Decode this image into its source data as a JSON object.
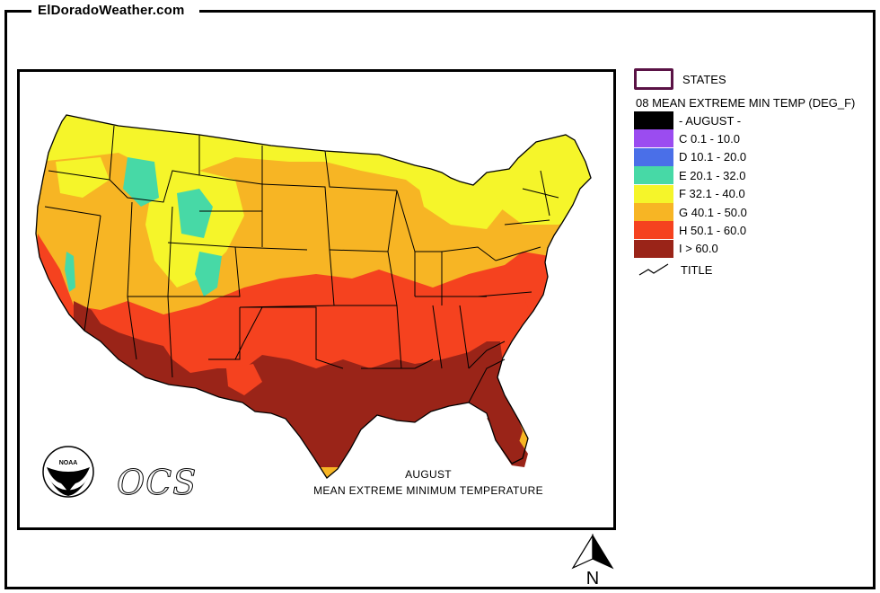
{
  "site_title": "ElDoradoWeather.com",
  "map": {
    "caption_line1": "AUGUST",
    "caption_line2": "MEAN EXTREME MINIMUM TEMPERATURE",
    "logo_agency": "NOAA",
    "logo_text": "OCS"
  },
  "legend": {
    "states_label": "STATES",
    "layer_title": "08 MEAN EXTREME MIN TEMP (DEG_F)",
    "states_border_color": "#5a1245",
    "classes": [
      {
        "label": "- AUGUST -",
        "color": "#000000"
      },
      {
        "label": "C 0.1 - 10.0",
        "color": "#9b4cf0"
      },
      {
        "label": "D 10.1 - 20.0",
        "color": "#4a6fe8"
      },
      {
        "label": "E 20.1 - 32.0",
        "color": "#47d9a6"
      },
      {
        "label": "F 32.1 - 40.0",
        "color": "#f5f52a"
      },
      {
        "label": "G 40.1 - 50.0",
        "color": "#f7b524"
      },
      {
        "label": "H 50.1 - 60.0",
        "color": "#f5421f"
      },
      {
        "label": "I > 60.0",
        "color": "#9a2418"
      }
    ],
    "title_label": "TITLE"
  },
  "north_arrow_label": "N"
}
